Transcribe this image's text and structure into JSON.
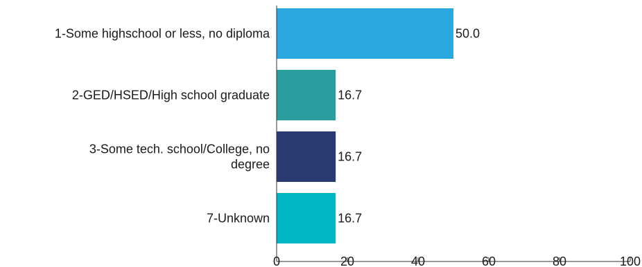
{
  "chart_data": {
    "type": "bar",
    "orientation": "horizontal",
    "categories": [
      [
        "1-Some highschool or less, no diploma"
      ],
      [
        "2-GED/HSED/High school graduate"
      ],
      [
        "3-Some tech. school/College, no",
        "degree"
      ],
      [
        "7-Unknown"
      ]
    ],
    "values": [
      50.0,
      16.7,
      16.7,
      16.7
    ],
    "value_labels": [
      "50.0",
      "16.7",
      "16.7",
      "16.7"
    ],
    "colors": [
      "#29a8e0",
      "#2a9d9f",
      "#283a70",
      "#00b6c5"
    ],
    "xlim": [
      0,
      100
    ],
    "xticks": [
      "0",
      "20",
      "40",
      "60",
      "80",
      "100"
    ],
    "title": "",
    "xlabel": "",
    "ylabel": "",
    "grid": false,
    "legend": "none"
  }
}
